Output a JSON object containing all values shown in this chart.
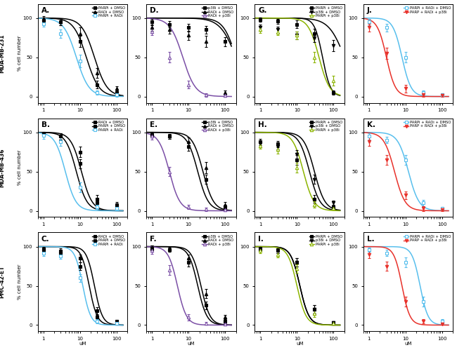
{
  "figure_width": 6.5,
  "figure_height": 4.99,
  "row_labels": [
    "MDA-MB-231",
    "MDA-MB-436",
    "PMC-42-ET"
  ],
  "panel_labels": [
    [
      "A.",
      "D.",
      "G.",
      "J."
    ],
    [
      "B.",
      "E.",
      "H.",
      "K."
    ],
    [
      "C.",
      "F.",
      "I.",
      "L."
    ]
  ],
  "ylabel": "% cell number",
  "xlabel": "uM",
  "colors": {
    "black": "#000000",
    "cyan": "#58BFED",
    "purple": "#7B4FA6",
    "olive": "#8CB400",
    "red": "#E8312A"
  },
  "panels": {
    "A": {
      "legend": [
        "PARPi + DMSO",
        "RADi + DMSO",
        "PARPi + RADi"
      ],
      "curves": [
        {
          "color": "black",
          "ic50": 15,
          "hill": 2.5,
          "marker": "s",
          "filled": true
        },
        {
          "color": "black",
          "ic50": 25,
          "hill": 2.5,
          "marker": "^",
          "filled": true
        },
        {
          "color": "cyan",
          "ic50": 8,
          "hill": 2.5,
          "marker": "s",
          "filled": false
        }
      ]
    },
    "B": {
      "legend": [
        "RADi + DMSO",
        "PARPi + DMSO",
        "PARPi + RADi"
      ],
      "curves": [
        {
          "color": "black",
          "ic50": 8,
          "hill": 3.0,
          "marker": "s",
          "filled": true
        },
        {
          "color": "black",
          "ic50": 11,
          "hill": 3.0,
          "marker": "s",
          "filled": true
        },
        {
          "color": "cyan",
          "ic50": 4,
          "hill": 3.0,
          "marker": "s",
          "filled": false
        }
      ]
    },
    "C": {
      "legend": [
        "RADi + DMSO",
        "PARPi + DMSO",
        "PARPi + RADi"
      ],
      "curves": [
        {
          "color": "black",
          "ic50": 18,
          "hill": 4.0,
          "marker": "s",
          "filled": true
        },
        {
          "color": "black",
          "ic50": 25,
          "hill": 4.0,
          "marker": "s",
          "filled": true
        },
        {
          "color": "cyan",
          "ic50": 12,
          "hill": 4.0,
          "marker": "s",
          "filled": false
        }
      ]
    },
    "D": {
      "legend": [
        "p38i + DMSO",
        "RADi + DMSO",
        "RADi + p38i"
      ],
      "curves": [
        {
          "color": "black",
          "ic50": 200,
          "hill": 2.0,
          "marker": "s",
          "filled": true
        },
        {
          "color": "black",
          "ic50": 200,
          "hill": 2.5,
          "marker": "^",
          "filled": true
        },
        {
          "color": "purple",
          "ic50": 7,
          "hill": 2.5,
          "marker": "^",
          "filled": false
        }
      ]
    },
    "E": {
      "legend": [
        "p38i + DMSO",
        "RADi + DMSO",
        "RADi + p38i"
      ],
      "curves": [
        {
          "color": "black",
          "ic50": 18,
          "hill": 3.0,
          "marker": "s",
          "filled": true
        },
        {
          "color": "black",
          "ic50": 25,
          "hill": 3.0,
          "marker": "^",
          "filled": true
        },
        {
          "color": "purple",
          "ic50": 3,
          "hill": 3.0,
          "marker": "^",
          "filled": false
        }
      ]
    },
    "F": {
      "legend": [
        "p38i + DMSO",
        "RADi + DMSO",
        "RADi + p38i"
      ],
      "curves": [
        {
          "color": "black",
          "ic50": 18,
          "hill": 3.5,
          "marker": "s",
          "filled": true
        },
        {
          "color": "black",
          "ic50": 22,
          "hill": 3.5,
          "marker": "^",
          "filled": true
        },
        {
          "color": "purple",
          "ic50": 5,
          "hill": 3.5,
          "marker": "^",
          "filled": false
        }
      ]
    },
    "G": {
      "legend": [
        "PARPi + DMSO",
        "p38i + DMSO",
        "PARPi + p38i"
      ],
      "curves": [
        {
          "color": "black",
          "ic50": 50,
          "hill": 4.0,
          "marker": "s",
          "filled": true
        },
        {
          "color": "black",
          "ic50": 200,
          "hill": 2.0,
          "marker": "v",
          "filled": true
        },
        {
          "color": "olive",
          "ic50": 40,
          "hill": 3.0,
          "marker": "^",
          "filled": false
        }
      ]
    },
    "H": {
      "legend": [
        "PARPi + DMSO",
        "p38i + DMSO",
        "PARPi + p38i"
      ],
      "curves": [
        {
          "color": "black",
          "ic50": 22,
          "hill": 3.0,
          "marker": "s",
          "filled": true
        },
        {
          "color": "black",
          "ic50": 30,
          "hill": 3.0,
          "marker": "v",
          "filled": true
        },
        {
          "color": "olive",
          "ic50": 15,
          "hill": 3.0,
          "marker": "^",
          "filled": false
        }
      ]
    },
    "I": {
      "legend": [
        "PARPi + DMSO",
        "p38i + DMSO",
        "PARPi + p38i"
      ],
      "curves": [
        {
          "color": "black",
          "ic50": 12,
          "hill": 3.5,
          "marker": "s",
          "filled": true
        },
        {
          "color": "black",
          "ic50": 12,
          "hill": 3.5,
          "marker": "v",
          "filled": true
        },
        {
          "color": "olive",
          "ic50": 10,
          "hill": 3.5,
          "marker": "^",
          "filled": false
        }
      ]
    },
    "J": {
      "legend": [
        "PARPi + RADi + DMSO",
        "PARP + RADi + p38i"
      ],
      "curves": [
        {
          "color": "cyan",
          "ic50": 8,
          "hill": 3.5,
          "marker": "s",
          "filled": false
        },
        {
          "color": "red",
          "ic50": 3,
          "hill": 3.5,
          "marker": "v",
          "filled": true
        }
      ]
    },
    "K": {
      "legend": [
        "PARPi + RADi + DMSO",
        "PARP + RADi + p38i"
      ],
      "curves": [
        {
          "color": "cyan",
          "ic50": 12,
          "hill": 3.0,
          "marker": "s",
          "filled": false
        },
        {
          "color": "red",
          "ic50": 5,
          "hill": 3.0,
          "marker": "v",
          "filled": true
        }
      ]
    },
    "L": {
      "legend": [
        "PARPi + RADi + DMSO",
        "PARP + RADi + p38i"
      ],
      "curves": [
        {
          "color": "cyan",
          "ic50": 25,
          "hill": 4.0,
          "marker": "s",
          "filled": false
        },
        {
          "color": "red",
          "ic50": 8,
          "hill": 4.0,
          "marker": "v",
          "filled": true
        }
      ]
    }
  },
  "panel_order": [
    [
      "A",
      "D",
      "G",
      "J"
    ],
    [
      "B",
      "E",
      "H",
      "K"
    ],
    [
      "C",
      "F",
      "I",
      "L"
    ]
  ],
  "data_points": {
    "A": {
      "x": [
        1,
        3,
        10,
        30,
        100
      ],
      "curves": [
        {
          "y": [
            97,
            95,
            70,
            15,
            5
          ],
          "yerr": [
            4,
            4,
            7,
            5,
            3
          ]
        },
        {
          "y": [
            99,
            95,
            80,
            30,
            10
          ],
          "yerr": [
            3,
            4,
            8,
            6,
            3
          ]
        },
        {
          "y": [
            93,
            80,
            45,
            5,
            2
          ],
          "yerr": [
            4,
            5,
            8,
            3,
            2
          ]
        }
      ]
    },
    "B": {
      "x": [
        1,
        3,
        10,
        30,
        100
      ],
      "curves": [
        {
          "y": [
            98,
            95,
            60,
            10,
            5
          ],
          "yerr": [
            3,
            4,
            6,
            4,
            3
          ]
        },
        {
          "y": [
            98,
            95,
            75,
            15,
            8
          ],
          "yerr": [
            3,
            4,
            7,
            5,
            3
          ]
        },
        {
          "y": [
            96,
            88,
            30,
            5,
            3
          ],
          "yerr": [
            4,
            5,
            6,
            3,
            2
          ]
        }
      ]
    },
    "C": {
      "x": [
        1,
        3,
        10,
        30,
        100
      ],
      "curves": [
        {
          "y": [
            95,
            92,
            75,
            10,
            3
          ],
          "yerr": [
            4,
            4,
            5,
            4,
            2
          ]
        },
        {
          "y": [
            97,
            94,
            85,
            18,
            5
          ],
          "yerr": [
            3,
            4,
            5,
            5,
            2
          ]
        },
        {
          "y": [
            92,
            88,
            60,
            5,
            2
          ],
          "yerr": [
            4,
            4,
            5,
            3,
            2
          ]
        }
      ]
    },
    "D": {
      "x": [
        1,
        3,
        10,
        30,
        100
      ],
      "curves": [
        {
          "y": [
            95,
            92,
            88,
            85,
            70
          ],
          "yerr": [
            4,
            4,
            5,
            5,
            6
          ]
        },
        {
          "y": [
            88,
            85,
            78,
            70,
            5
          ],
          "yerr": [
            4,
            5,
            6,
            7,
            3
          ]
        },
        {
          "y": [
            83,
            50,
            15,
            2,
            1
          ],
          "yerr": [
            5,
            7,
            5,
            2,
            1
          ]
        }
      ]
    },
    "E": {
      "x": [
        1,
        3,
        10,
        30,
        100
      ],
      "curves": [
        {
          "y": [
            97,
            95,
            82,
            40,
            5
          ],
          "yerr": [
            3,
            3,
            6,
            6,
            3
          ]
        },
        {
          "y": [
            98,
            95,
            88,
            55,
            8
          ],
          "yerr": [
            3,
            3,
            5,
            7,
            3
          ]
        },
        {
          "y": [
            95,
            50,
            5,
            2,
            1
          ],
          "yerr": [
            4,
            6,
            3,
            2,
            1
          ]
        }
      ]
    },
    "F": {
      "x": [
        1,
        3,
        10,
        30,
        100
      ],
      "curves": [
        {
          "y": [
            98,
            96,
            80,
            25,
            5
          ],
          "yerr": [
            3,
            3,
            5,
            5,
            3
          ]
        },
        {
          "y": [
            98,
            97,
            85,
            40,
            10
          ],
          "yerr": [
            3,
            3,
            5,
            6,
            3
          ]
        },
        {
          "y": [
            95,
            70,
            10,
            2,
            1
          ],
          "yerr": [
            4,
            6,
            4,
            2,
            1
          ]
        }
      ]
    },
    "G": {
      "x": [
        1,
        3,
        10,
        30,
        100
      ],
      "curves": [
        {
          "y": [
            98,
            96,
            92,
            80,
            5
          ],
          "yerr": [
            3,
            3,
            5,
            6,
            3
          ]
        },
        {
          "y": [
            88,
            85,
            78,
            75,
            65
          ],
          "yerr": [
            4,
            4,
            5,
            6,
            7
          ]
        },
        {
          "y": [
            85,
            82,
            78,
            50,
            20
          ],
          "yerr": [
            4,
            4,
            5,
            7,
            6
          ]
        }
      ]
    },
    "H": {
      "x": [
        1,
        3,
        10,
        30,
        100
      ],
      "curves": [
        {
          "y": [
            88,
            85,
            65,
            15,
            5
          ],
          "yerr": [
            4,
            4,
            6,
            5,
            3
          ]
        },
        {
          "y": [
            85,
            82,
            72,
            40,
            10
          ],
          "yerr": [
            4,
            4,
            5,
            6,
            3
          ]
        },
        {
          "y": [
            83,
            78,
            55,
            8,
            3
          ],
          "yerr": [
            4,
            5,
            6,
            4,
            2
          ]
        }
      ]
    },
    "I": {
      "x": [
        1,
        3,
        10,
        30,
        100
      ],
      "curves": [
        {
          "y": [
            97,
            95,
            80,
            20,
            3
          ],
          "yerr": [
            3,
            3,
            5,
            5,
            2
          ]
        },
        {
          "y": [
            97,
            95,
            80,
            20,
            3
          ],
          "yerr": [
            3,
            3,
            5,
            5,
            2
          ]
        },
        {
          "y": [
            95,
            90,
            72,
            15,
            2
          ],
          "yerr": [
            3,
            4,
            5,
            5,
            2
          ]
        }
      ]
    },
    "J": {
      "x": [
        1,
        3,
        10,
        30,
        100
      ],
      "curves": [
        {
          "y": [
            95,
            88,
            50,
            5,
            2
          ],
          "yerr": [
            4,
            5,
            7,
            3,
            2
          ]
        },
        {
          "y": [
            88,
            55,
            10,
            2,
            1
          ],
          "yerr": [
            5,
            7,
            5,
            2,
            1
          ]
        }
      ]
    },
    "K": {
      "x": [
        1,
        3,
        10,
        30,
        100
      ],
      "curves": [
        {
          "y": [
            95,
            90,
            65,
            10,
            3
          ],
          "yerr": [
            4,
            4,
            6,
            4,
            2
          ]
        },
        {
          "y": [
            88,
            65,
            20,
            3,
            1
          ],
          "yerr": [
            5,
            6,
            5,
            3,
            1
          ]
        }
      ]
    },
    "L": {
      "x": [
        1,
        3,
        10,
        30,
        100
      ],
      "curves": [
        {
          "y": [
            96,
            92,
            80,
            30,
            5
          ],
          "yerr": [
            3,
            4,
            6,
            6,
            3
          ]
        },
        {
          "y": [
            90,
            75,
            30,
            5,
            1
          ],
          "yerr": [
            5,
            6,
            6,
            3,
            1
          ]
        }
      ]
    }
  }
}
